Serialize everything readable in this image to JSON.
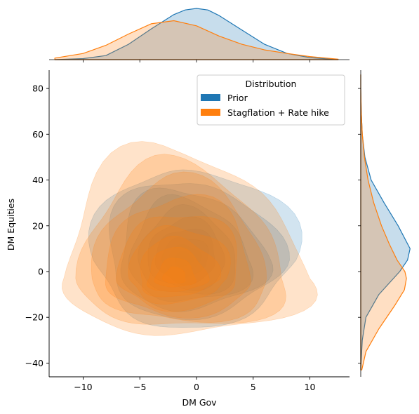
{
  "chart_data": {
    "type": "joint-kde",
    "xlabel": "DM Gov",
    "ylabel": "DM Equities",
    "xlim": [
      -13,
      13.5
    ],
    "ylim": [
      -46,
      88
    ],
    "xticks": [
      -10,
      -5,
      0,
      5,
      10
    ],
    "yticks": [
      -40,
      -20,
      0,
      20,
      40,
      60,
      80
    ],
    "xtick_labels": [
      "−10",
      "−5",
      "0",
      "5",
      "10"
    ],
    "ytick_labels": [
      "−40",
      "−20",
      "0",
      "20",
      "40",
      "60",
      "80"
    ],
    "legend": {
      "title": "Distribution",
      "placement": "top-right",
      "entries": [
        "Prior",
        "Stagflation + Rate hike"
      ]
    },
    "series": [
      {
        "name": "Prior",
        "color": "#1f77b4",
        "mean": [
          -1.2,
          5
        ],
        "sd": [
          3.2,
          15
        ],
        "contour_extent": {
          "x": [
            -8.8,
            8.4
          ],
          "y": [
            -25,
            47
          ]
        }
      },
      {
        "name": "Stagflation + Rate hike",
        "color": "#ff7f0e",
        "mean": [
          -2,
          -3
        ],
        "sd": [
          4.3,
          13
        ],
        "contour_extent": {
          "x": [
            -11.8,
            9.7
          ],
          "y": [
            -28,
            53
          ]
        }
      }
    ],
    "marginal_x": [
      {
        "name": "Prior",
        "x": [
          -12.5,
          -10,
          -8,
          -6,
          -4,
          -2,
          -1,
          0,
          1,
          2,
          4,
          6,
          8,
          10,
          12.5
        ],
        "density": [
          0,
          0.02,
          0.08,
          0.3,
          0.6,
          0.88,
          0.97,
          1.0,
          0.97,
          0.86,
          0.58,
          0.3,
          0.12,
          0.04,
          0
        ]
      },
      {
        "name": "Stagflation + Rate hike",
        "x": [
          -12.5,
          -10,
          -8,
          -6,
          -4,
          -2,
          0,
          2,
          4,
          6,
          8,
          10,
          12.5
        ],
        "density": [
          0.03,
          0.12,
          0.28,
          0.5,
          0.7,
          0.76,
          0.66,
          0.46,
          0.3,
          0.19,
          0.12,
          0.06,
          0.01
        ]
      }
    ],
    "marginal_y": [
      {
        "name": "Prior",
        "y": [
          -43,
          -30,
          -20,
          -10,
          0,
          5,
          10,
          20,
          30,
          40,
          50,
          60,
          70,
          80,
          86
        ],
        "density": [
          0,
          0.03,
          0.1,
          0.35,
          0.75,
          0.9,
          0.95,
          0.72,
          0.45,
          0.2,
          0.08,
          0.03,
          0.01,
          0,
          0
        ]
      },
      {
        "name": "Stagflation + Rate hike",
        "y": [
          -43,
          -35,
          -25,
          -15,
          -8,
          -3,
          0,
          5,
          12,
          20,
          30,
          40,
          50,
          60,
          70,
          80,
          86
        ],
        "density": [
          0.02,
          0.1,
          0.35,
          0.65,
          0.84,
          0.88,
          0.85,
          0.7,
          0.55,
          0.4,
          0.25,
          0.14,
          0.07,
          0.03,
          0.01,
          0,
          0
        ]
      }
    ]
  }
}
